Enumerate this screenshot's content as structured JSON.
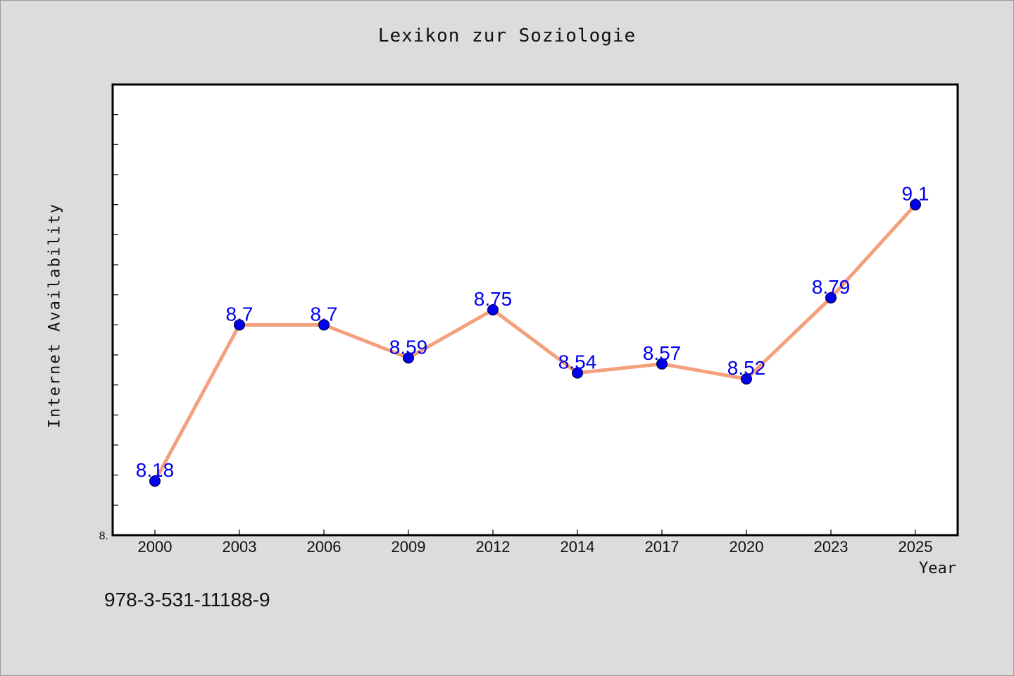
{
  "chart_data": {
    "type": "line",
    "title": "Lexikon zur Soziologie",
    "xlabel": "Year",
    "ylabel": "Internet Availability",
    "categories": [
      "2000",
      "2003",
      "2006",
      "2009",
      "2012",
      "2014",
      "2017",
      "2020",
      "2023",
      "2025"
    ],
    "series": [
      {
        "values": [
          8.18,
          8.7,
          8.7,
          8.59,
          8.75,
          8.54,
          8.57,
          8.52,
          8.79,
          9.1
        ]
      }
    ],
    "data_labels": [
      "8.18",
      "8.7",
      "8.7",
      "8.59",
      "8.75",
      "8.54",
      "8.57",
      "8.52",
      "8.79",
      "9.1"
    ],
    "y_tick_label": "8.",
    "ylim": [
      8.0,
      9.5
    ],
    "grid": false,
    "colors": {
      "line": "#f4a07c",
      "marker": "#0000ee",
      "label": "#0000ee",
      "background": "#dcdcdc",
      "plot_background": "#ffffff"
    }
  },
  "footer": {
    "code": "978-3-531-11188-9"
  }
}
